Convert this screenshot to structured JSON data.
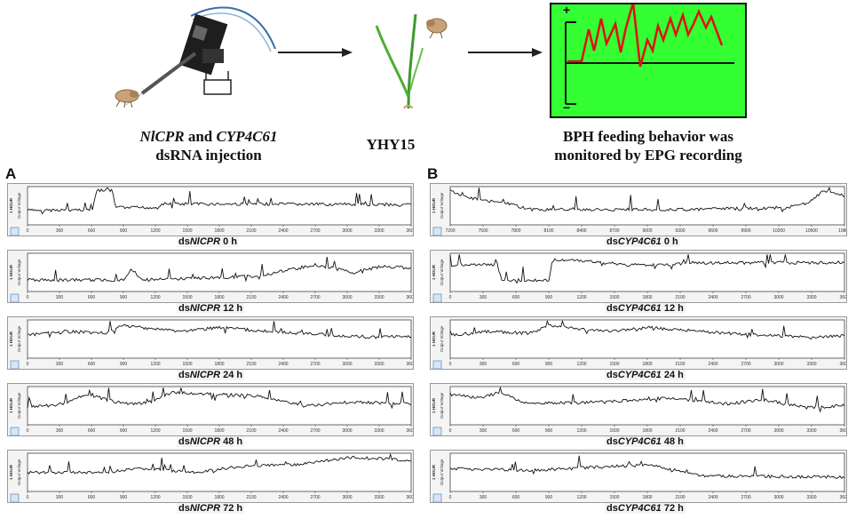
{
  "top_row": {
    "step1_caption": {
      "gene1": "NlCPR",
      "joiner": " and ",
      "gene2": "CYP4C61",
      "line2": "dsRNA injection"
    },
    "step2_caption": "YHY15",
    "step3_caption": {
      "line1": "BPH feeding behavior was",
      "line2": "monitored by EPG recording"
    },
    "epg_plus": "+",
    "epg_minus": "−",
    "colors": {
      "epg_background": "#33ff33",
      "epg_trace": "#e01010",
      "plant": "#3c9a2a"
    }
  },
  "panels": {
    "A": {
      "letter": "A",
      "ylabel": "Output Voltage",
      "side_tag": "1 HOUR",
      "traces": [
        {
          "prefix": "ds",
          "gene": "NlCPR",
          "time": " 0 h",
          "xticks": [
            "0",
            "300",
            "600",
            "900",
            "1200",
            "1500",
            "1800",
            "2100",
            "2400",
            "2700",
            "3000",
            "3300",
            "3600"
          ]
        },
        {
          "prefix": "ds",
          "gene": "NlCPR",
          "time": " 12 h",
          "xticks": [
            "0",
            "300",
            "600",
            "900",
            "1200",
            "1500",
            "1800",
            "2100",
            "2400",
            "2700",
            "3000",
            "3300",
            "3600"
          ]
        },
        {
          "prefix": "ds",
          "gene": "NlCPR",
          "time": " 24 h",
          "xticks": [
            "0",
            "300",
            "600",
            "900",
            "1200",
            "1500",
            "1800",
            "2100",
            "2400",
            "2700",
            "3000",
            "3300",
            "3600"
          ]
        },
        {
          "prefix": "ds",
          "gene": "NlCPR",
          "time": " 48 h",
          "xticks": [
            "0",
            "300",
            "600",
            "900",
            "1200",
            "1500",
            "1800",
            "2100",
            "2400",
            "2700",
            "3000",
            "3300",
            "3600"
          ]
        },
        {
          "prefix": "ds",
          "gene": "NlCPR",
          "time": " 72 h",
          "xticks": [
            "0",
            "300",
            "600",
            "900",
            "1200",
            "1500",
            "1800",
            "2100",
            "2400",
            "2700",
            "3000",
            "3300",
            "3600"
          ]
        }
      ]
    },
    "B": {
      "letter": "B",
      "ylabel": "Output Voltage",
      "side_tag": "1 HOUR",
      "traces": [
        {
          "prefix": "ds",
          "gene": "CYP4C61",
          "time": " 0 h",
          "xticks": [
            "7200",
            "7500",
            "7800",
            "8100",
            "8400",
            "8700",
            "9000",
            "9300",
            "9600",
            "9900",
            "10200",
            "10500",
            "10800"
          ]
        },
        {
          "prefix": "ds",
          "gene": "CYP4C61",
          "time": " 12 h",
          "xticks": [
            "0",
            "300",
            "600",
            "900",
            "1200",
            "1500",
            "1800",
            "2100",
            "2400",
            "2700",
            "3000",
            "3300",
            "3600"
          ]
        },
        {
          "prefix": "ds",
          "gene": "CYP4C61",
          "time": " 24 h",
          "xticks": [
            "0",
            "300",
            "600",
            "900",
            "1200",
            "1500",
            "1800",
            "2100",
            "2400",
            "2700",
            "3000",
            "3300",
            "3600"
          ]
        },
        {
          "prefix": "ds",
          "gene": "CYP4C61",
          "time": " 48 h",
          "xticks": [
            "0",
            "300",
            "600",
            "900",
            "1200",
            "1500",
            "1800",
            "2100",
            "2400",
            "2700",
            "3000",
            "3300",
            "3600"
          ]
        },
        {
          "prefix": "ds",
          "gene": "CYP4C61",
          "time": " 72 h",
          "xticks": [
            "0",
            "300",
            "600",
            "900",
            "1200",
            "1500",
            "1800",
            "2100",
            "2400",
            "2700",
            "3000",
            "3300",
            "3600"
          ]
        }
      ]
    }
  }
}
